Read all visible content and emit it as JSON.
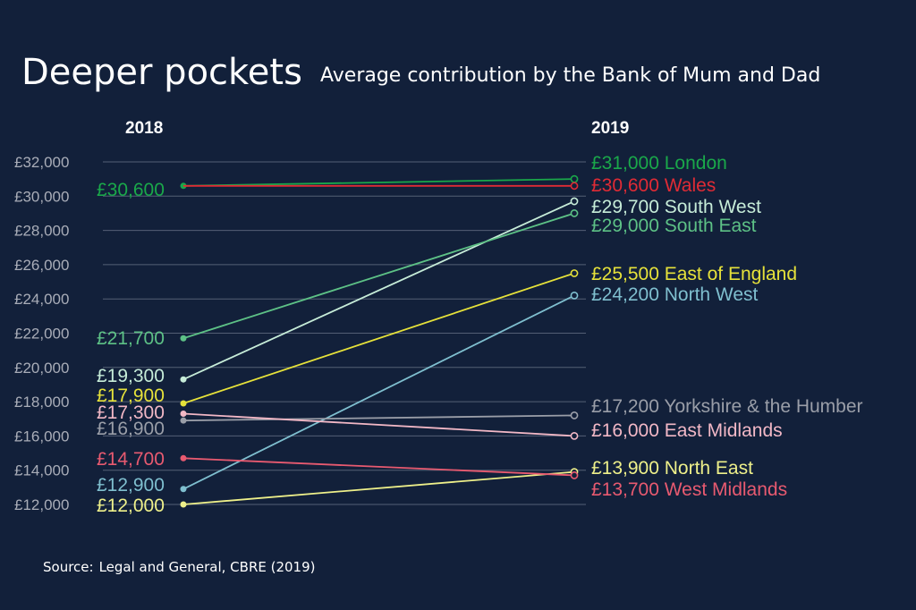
{
  "title": "Deeper pockets",
  "subtitle": "Average contribution by the Bank of Mum and Dad",
  "source_label": "Source:",
  "source_text": "Legal and General, CBRE (2019)",
  "chart_data": {
    "type": "line",
    "x": [
      "2018",
      "2019"
    ],
    "ylim": [
      12000,
      32000
    ],
    "y_ticks": [
      "£12,000",
      "£14,000",
      "£16,000",
      "£18,000",
      "£20,000",
      "£22,000",
      "£24,000",
      "£26,000",
      "£28,000",
      "£30,000",
      "£32,000"
    ],
    "y_tick_values": [
      12000,
      14000,
      16000,
      18000,
      20000,
      22000,
      24000,
      26000,
      28000,
      30000,
      32000
    ],
    "grid": true,
    "series": [
      {
        "name": "London",
        "values": [
          30600,
          31000
        ],
        "color": "#1aa84a",
        "label_2018": "£30,600",
        "label_2019": "£31,000 London"
      },
      {
        "name": "Wales",
        "values": [
          30600,
          30600
        ],
        "color": "#e02b35",
        "label_2018": "",
        "label_2019": "£30,600 Wales"
      },
      {
        "name": "South West",
        "values": [
          19300,
          29700
        ],
        "color": "#c6ecd8",
        "label_2018": "£19,300",
        "label_2019": "£29,700 South West"
      },
      {
        "name": "South East",
        "values": [
          21700,
          29000
        ],
        "color": "#5dc186",
        "label_2018": "£21,700",
        "label_2019": "£29,000 South East"
      },
      {
        "name": "East of England",
        "values": [
          17900,
          25500
        ],
        "color": "#e6e23a",
        "label_2018": "£17,900",
        "label_2019": "£25,500 East of England"
      },
      {
        "name": "North West",
        "values": [
          12900,
          24200
        ],
        "color": "#7fbfcf",
        "label_2018": "£12,900",
        "label_2019": "£24,200 North West"
      },
      {
        "name": "Yorkshire & the Humber",
        "values": [
          16900,
          17200
        ],
        "color": "#9a9ea8",
        "label_2018": "£16,900",
        "label_2019": "£17,200 Yorkshire & the Humber"
      },
      {
        "name": "East Midlands",
        "values": [
          17300,
          16000
        ],
        "color": "#f2b8c6",
        "label_2018": "£17,300",
        "label_2019": "£16,000 East Midlands"
      },
      {
        "name": "North East",
        "values": [
          12000,
          13900
        ],
        "color": "#eef08a",
        "label_2018": "£12,000",
        "label_2019": "£13,900 North East"
      },
      {
        "name": "West Midlands",
        "values": [
          14700,
          13700
        ],
        "color": "#e85a70",
        "label_2018": "£14,700",
        "label_2019": "£13,700 West Midlands"
      }
    ]
  }
}
